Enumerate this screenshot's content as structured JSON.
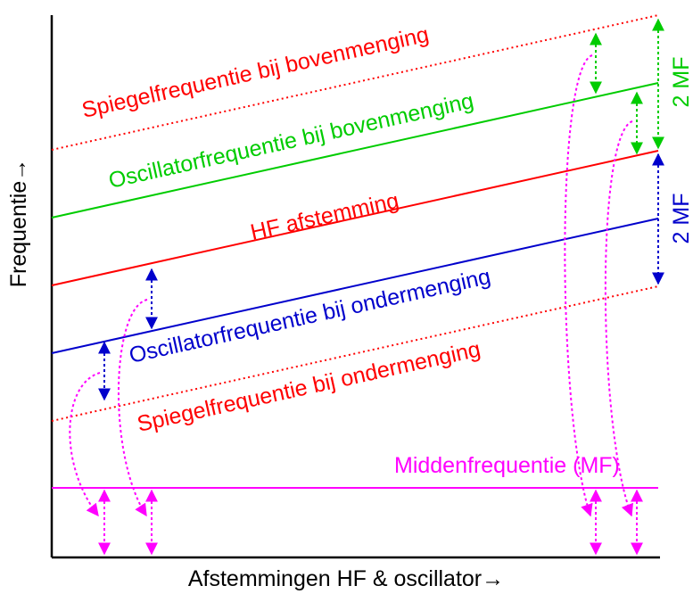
{
  "axes": {
    "y_label": "Frequentie→",
    "x_label": "Afstemmingen HF & oscillator→"
  },
  "lines": {
    "spiegel_boven": {
      "label": "Spiegelfrequentie bij bovenmenging",
      "color": "#ff0000",
      "style": "dotted"
    },
    "osc_boven": {
      "label": "Oscillatorfrequentie bij bovenmenging",
      "color": "#00cc00",
      "style": "solid"
    },
    "hf": {
      "label": "HF afstemming",
      "color": "#ff0000",
      "style": "solid"
    },
    "osc_onder": {
      "label": "Oscillatorfrequentie bij ondermenging",
      "color": "#0000cc",
      "style": "solid"
    },
    "spiegel_onder": {
      "label": "Spiegelfrequentie bij ondermenging",
      "color": "#ff0000",
      "style": "dotted"
    },
    "mf": {
      "label": "Middenfrequentie (MF)",
      "color": "#ff00ff",
      "style": "solid"
    }
  },
  "annotations": {
    "top_span": {
      "label": "2 MF",
      "color": "#00cc00"
    },
    "bottom_span": {
      "label": "2 MF",
      "color": "#0000cc"
    }
  },
  "colors": {
    "axis": "#000000",
    "curve_arrows": "#ff00ff"
  }
}
